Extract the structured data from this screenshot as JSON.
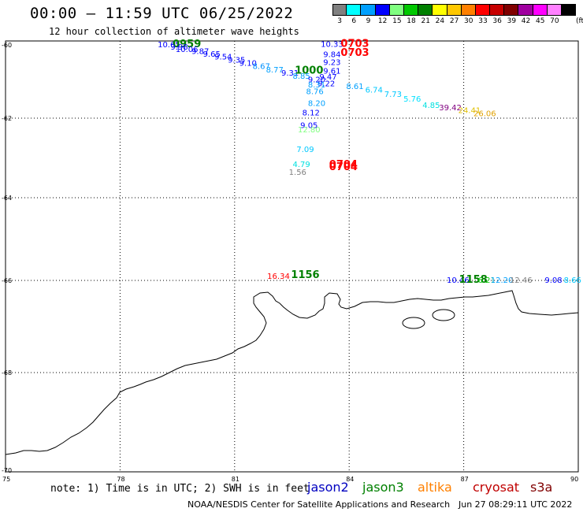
{
  "header": {
    "title": "00:00 – 11:59 UTC 06/25/2022",
    "subtitle": "12 hour collection of altimeter wave heights"
  },
  "colorbar": {
    "unit": "(ft)",
    "bins": [
      {
        "label": "3",
        "color": "#808080"
      },
      {
        "label": "6",
        "color": "#00ffff"
      },
      {
        "label": "9",
        "color": "#00a0ff"
      },
      {
        "label": "12",
        "color": "#0000ff"
      },
      {
        "label": "15",
        "color": "#80ff80"
      },
      {
        "label": "18",
        "color": "#00c800"
      },
      {
        "label": "21",
        "color": "#008000"
      },
      {
        "label": "24",
        "color": "#ffff00"
      },
      {
        "label": "27",
        "color": "#ffc800"
      },
      {
        "label": "30",
        "color": "#ff8000"
      },
      {
        "label": "33",
        "color": "#ff0000"
      },
      {
        "label": "36",
        "color": "#c80000"
      },
      {
        "label": "39",
        "color": "#800000"
      },
      {
        "label": "42",
        "color": "#a000a0"
      },
      {
        "label": "45",
        "color": "#ff00ff"
      },
      {
        "label": "70",
        "color": "#ff80ff"
      },
      {
        "label": "",
        "color": "#000000"
      }
    ]
  },
  "axes": {
    "lon_ticks": [
      "75",
      "78",
      "81",
      "84",
      "87",
      "90"
    ],
    "lat_ticks": [
      "-60",
      "-62",
      "-64",
      "-66",
      "-68",
      "-70"
    ]
  },
  "observations": [
    {
      "text": "10.65",
      "lon": 79.28,
      "lat": -60.06,
      "color": "#0000ff"
    },
    {
      "text": "0959",
      "lon": 79.75,
      "lat": -60.06,
      "color": "#008000",
      "bold": true
    },
    {
      "text": "9.98",
      "lon": 79.55,
      "lat": -60.13,
      "color": "#0000ff"
    },
    {
      "text": "10.06",
      "lon": 79.75,
      "lat": -60.19,
      "color": "#0000ff"
    },
    {
      "text": "9.87",
      "lon": 80.1,
      "lat": -60.25,
      "color": "#0000ff"
    },
    {
      "text": "9.65",
      "lon": 80.4,
      "lat": -60.32,
      "color": "#0000ff"
    },
    {
      "text": "9.54",
      "lon": 80.7,
      "lat": -60.4,
      "color": "#0000ff"
    },
    {
      "text": "9.35",
      "lon": 81.05,
      "lat": -60.48,
      "color": "#0000ff"
    },
    {
      "text": "9.10",
      "lon": 81.35,
      "lat": -60.57,
      "color": "#0000ff"
    },
    {
      "text": "8.67",
      "lon": 81.7,
      "lat": -60.66,
      "color": "#0090ff"
    },
    {
      "text": "8.77",
      "lon": 82.05,
      "lat": -60.75,
      "color": "#00a0ff"
    },
    {
      "text": "9.31",
      "lon": 82.45,
      "lat": -60.84,
      "color": "#0000ff"
    },
    {
      "text": "1000",
      "lon": 82.95,
      "lat": -60.78,
      "color": "#008000",
      "bold": true
    },
    {
      "text": "10.33",
      "lon": 83.55,
      "lat": -60.05,
      "color": "#0000ff"
    },
    {
      "text": "0703",
      "lon": 84.15,
      "lat": -60.05,
      "color": "#ff0000",
      "bold": true
    },
    {
      "text": "9.84",
      "lon": 83.55,
      "lat": -60.33,
      "color": "#0000ff"
    },
    {
      "text": "0703",
      "lon": 84.15,
      "lat": -60.3,
      "color": "#ff0000",
      "bold": true
    },
    {
      "text": "9.23",
      "lon": 83.55,
      "lat": -60.55,
      "color": "#0000ff"
    },
    {
      "text": "9.61",
      "lon": 83.55,
      "lat": -60.78,
      "color": "#0000ff"
    },
    {
      "text": "8.85",
      "lon": 82.75,
      "lat": -60.93,
      "color": "#00a0ff"
    },
    {
      "text": "9.47",
      "lon": 83.45,
      "lat": -60.95,
      "color": "#0000ff"
    },
    {
      "text": "9.20",
      "lon": 83.15,
      "lat": -61.02,
      "color": "#0000ff"
    },
    {
      "text": "9.22",
      "lon": 83.4,
      "lat": -61.13,
      "color": "#0000ff"
    },
    {
      "text": "8.31",
      "lon": 83.15,
      "lat": -61.16,
      "color": "#00a0ff"
    },
    {
      "text": "8.61",
      "lon": 84.15,
      "lat": -61.2,
      "color": "#00a0ff"
    },
    {
      "text": "8.76",
      "lon": 83.1,
      "lat": -61.34,
      "color": "#00a0ff"
    },
    {
      "text": "6.74",
      "lon": 84.65,
      "lat": -61.3,
      "color": "#00c8ff"
    },
    {
      "text": "7.73",
      "lon": 85.15,
      "lat": -61.42,
      "color": "#00c8ff"
    },
    {
      "text": "5.76",
      "lon": 85.65,
      "lat": -61.55,
      "color": "#00e0ff"
    },
    {
      "text": "8.20",
      "lon": 83.15,
      "lat": -61.67,
      "color": "#00a0ff"
    },
    {
      "text": "4.85",
      "lon": 86.15,
      "lat": -61.72,
      "color": "#00e0e0"
    },
    {
      "text": "39.42",
      "lon": 86.65,
      "lat": -61.78,
      "color": "#800080"
    },
    {
      "text": "24.41",
      "lon": 87.15,
      "lat": -61.86,
      "color": "#e0c000"
    },
    {
      "text": "26.06",
      "lon": 87.55,
      "lat": -61.95,
      "color": "#e0a000"
    },
    {
      "text": "8.12",
      "lon": 83.0,
      "lat": -61.93,
      "color": "#0000ff"
    },
    {
      "text": "9.05",
      "lon": 82.95,
      "lat": -62.25,
      "color": "#0000ff"
    },
    {
      "text": "12.80",
      "lon": 82.95,
      "lat": -62.36,
      "color": "#80ff80"
    },
    {
      "text": "7.09",
      "lon": 82.85,
      "lat": -62.85,
      "color": "#00c8ff"
    },
    {
      "text": "4.79",
      "lon": 82.75,
      "lat": -63.23,
      "color": "#00e0e0"
    },
    {
      "text": "0704",
      "lon": 83.85,
      "lat": -63.25,
      "color": "#ff0000",
      "bold": true
    },
    {
      "text": "0704",
      "lon": 83.85,
      "lat": -63.31,
      "color": "#ff0000",
      "bold": true
    },
    {
      "text": "1.56",
      "lon": 82.65,
      "lat": -63.43,
      "color": "#808080"
    },
    {
      "text": "16.34",
      "lon": 82.15,
      "lat": -65.96,
      "color": "#ff0000"
    },
    {
      "text": "1156",
      "lon": 82.85,
      "lat": -65.94,
      "color": "#008000",
      "bold": true
    },
    {
      "text": "10.46",
      "lon": 86.85,
      "lat": -66.05,
      "color": "#0000ff"
    },
    {
      "text": "1158",
      "lon": 87.25,
      "lat": -66.05,
      "color": "#008000",
      "bold": true
    },
    {
      "text": "6.21",
      "lon": 87.6,
      "lat": -66.05,
      "color": "#00c800"
    },
    {
      "text": "12.20",
      "lon": 88.0,
      "lat": -66.05,
      "color": "#00a0ff"
    },
    {
      "text": "12.46",
      "lon": 88.5,
      "lat": -66.05,
      "color": "#808080"
    },
    {
      "text": "9.08",
      "lon": 89.35,
      "lat": -66.05,
      "color": "#0000ff"
    },
    {
      "text": "8.66",
      "lon": 89.85,
      "lat": -66.05,
      "color": "#00c8ff"
    }
  ],
  "footer": {
    "note": "note: 1) Time is in UTC; 2) SWH is in feet",
    "satellites": [
      {
        "name": "jason2",
        "color": "#0000c0"
      },
      {
        "name": "jason3",
        "color": "#008000"
      },
      {
        "name": "altika",
        "color": "#ff8000"
      },
      {
        "name": "cryosat",
        "color": "#c00000"
      },
      {
        "name": "s3a",
        "color": "#800000"
      }
    ],
    "credit": "NOAA/NESDIS Center for Satellite Applications and Research",
    "timestamp": "Jun 27 08:29:11 UTC 2022"
  }
}
